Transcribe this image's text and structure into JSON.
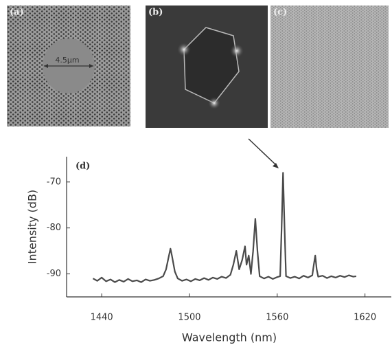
{
  "images": [
    {
      "label": "(a)",
      "annotation": "4.5μm"
    },
    {
      "label": "(b)"
    },
    {
      "label": "(c)"
    }
  ],
  "chart_data": {
    "type": "line",
    "panel_label": "(d)",
    "x_label": "Wavelength (nm)",
    "y_label": "Intensity (dB)",
    "xlim": [
      1416,
      1638
    ],
    "ylim": [
      -95,
      -64.5
    ],
    "xticks": [
      1440,
      1500,
      1560,
      1620
    ],
    "yticks": [
      -90,
      -80,
      -70
    ],
    "x": [
      1434,
      1437,
      1440,
      1443,
      1446,
      1449,
      1452,
      1455,
      1458,
      1461,
      1464,
      1467,
      1470,
      1473,
      1476,
      1479,
      1482,
      1484,
      1486,
      1487,
      1488,
      1490,
      1492,
      1495,
      1498,
      1501,
      1504,
      1507,
      1510,
      1513,
      1516,
      1519,
      1522,
      1525,
      1528,
      1530,
      1532,
      1534,
      1536,
      1538,
      1539,
      1540.5,
      1542,
      1543.5,
      1545,
      1546.5,
      1548,
      1551,
      1554,
      1557,
      1560,
      1562,
      1563,
      1564,
      1565,
      1566,
      1569,
      1572,
      1575,
      1578,
      1581,
      1584,
      1585,
      1586,
      1587,
      1588,
      1591,
      1594,
      1597,
      1600,
      1603,
      1606,
      1609,
      1612,
      1614
    ],
    "series": [
      {
        "color": "#4a4a4a",
        "values": [
          -91,
          -91.5,
          -90.8,
          -91.6,
          -91.2,
          -91.8,
          -91.3,
          -91.7,
          -91.1,
          -91.6,
          -91.4,
          -91.8,
          -91.2,
          -91.5,
          -91.3,
          -91,
          -90.5,
          -89,
          -86,
          -84.5,
          -86,
          -89.5,
          -91,
          -91.5,
          -91.2,
          -91.6,
          -91.1,
          -91.4,
          -90.9,
          -91.3,
          -90.8,
          -91.1,
          -90.6,
          -90.9,
          -90.2,
          -88,
          -85,
          -89,
          -87,
          -84,
          -88,
          -86,
          -90,
          -85,
          -78,
          -85,
          -90.5,
          -91,
          -90.6,
          -91.1,
          -90.7,
          -90.5,
          -80,
          -68,
          -80,
          -90.5,
          -90.9,
          -90.6,
          -91,
          -90.4,
          -90.8,
          -90.3,
          -88,
          -86,
          -89,
          -90.6,
          -90.4,
          -90.9,
          -90.5,
          -90.8,
          -90.4,
          -90.7,
          -90.3,
          -90.6,
          -90.5
        ]
      }
    ]
  }
}
